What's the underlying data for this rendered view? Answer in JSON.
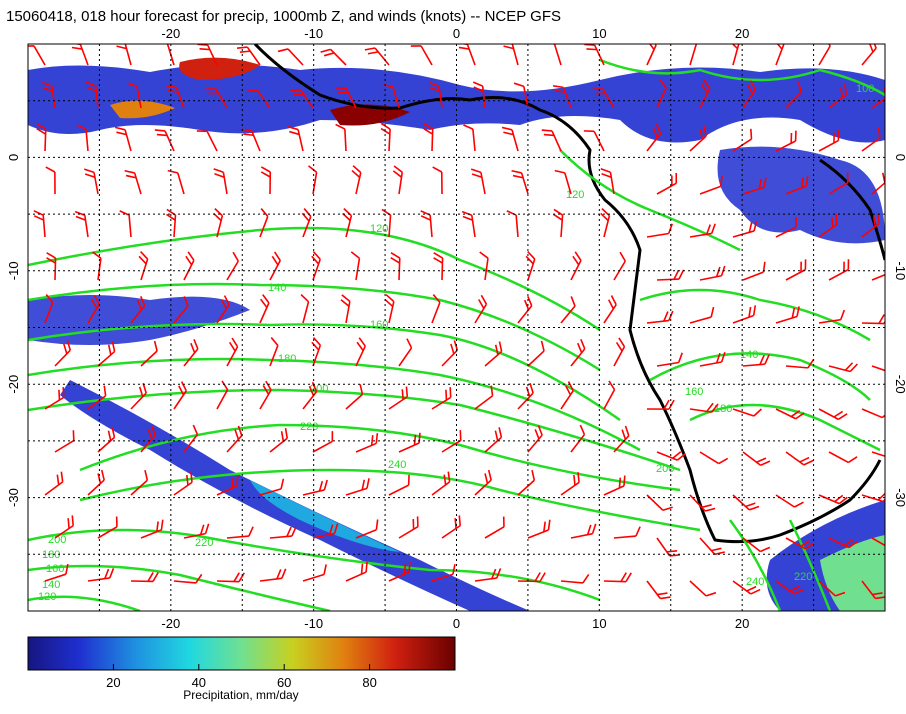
{
  "title": "15060418, 018 hour forecast for precip, 1000mb Z, and winds (knots) -- NCEP GFS",
  "map": {
    "lon_range": [
      -30,
      30
    ],
    "lat_range": [
      -40,
      10
    ],
    "lon_ticks": [
      -20,
      -10,
      0,
      10,
      20
    ],
    "lat_ticks": [
      0,
      -10,
      -20,
      -30
    ],
    "gridlines": true
  },
  "contours": {
    "color": "#22dd22",
    "labels": [
      "120",
      "140",
      "160",
      "180",
      "200",
      "220",
      "240",
      "220",
      "200",
      "180",
      "160",
      "140",
      "120",
      "100",
      "120",
      "160",
      "140",
      "180",
      "200",
      "240",
      "220"
    ]
  },
  "colorbar": {
    "ticks": [
      "20",
      "40",
      "60",
      "80"
    ],
    "range": [
      0,
      100
    ],
    "label": "Precipitation, mm/day"
  },
  "colors": {
    "wind_barbs": "#ff0000",
    "coastline": "#000000"
  }
}
